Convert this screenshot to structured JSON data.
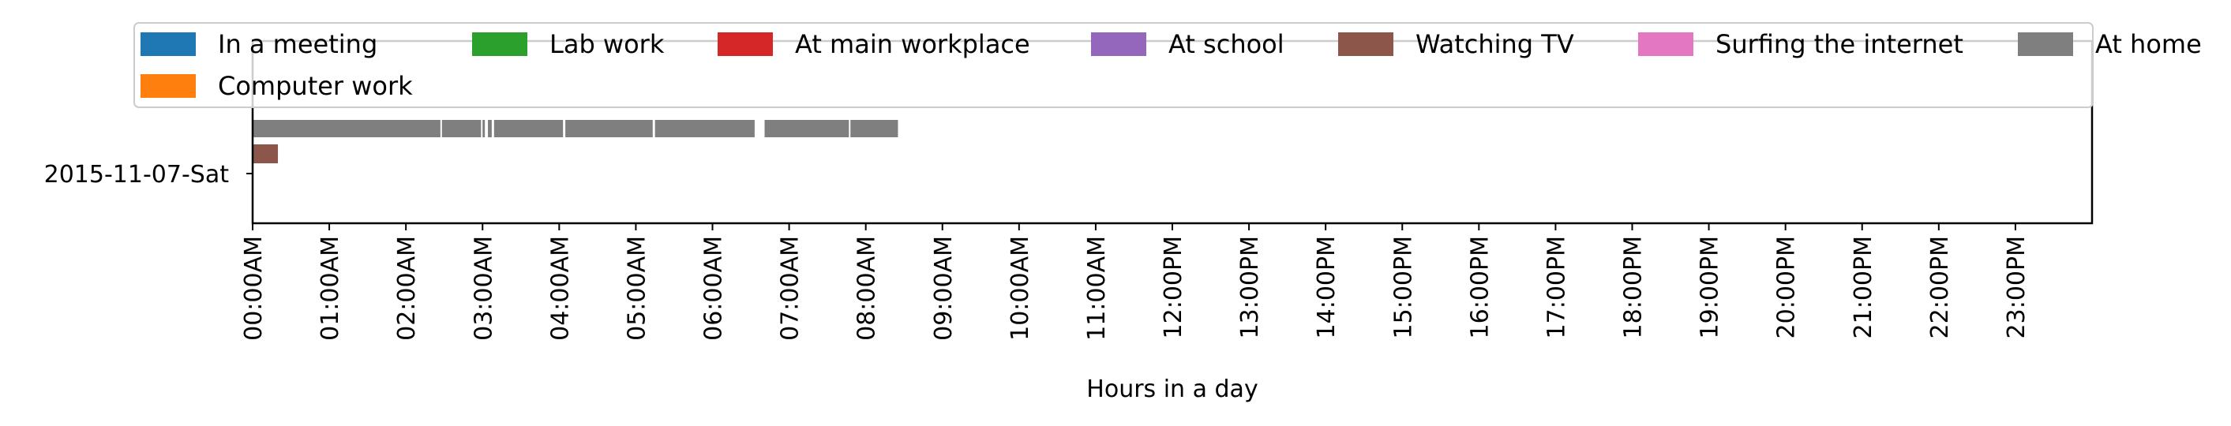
{
  "chart_data": {
    "type": "timeline",
    "title": "",
    "xlabel": "Hours in a day",
    "ylabel": "",
    "x_range_hours": [
      0,
      24
    ],
    "x_ticks": [
      "00:00AM",
      "01:00AM",
      "02:00AM",
      "03:00AM",
      "04:00AM",
      "05:00AM",
      "06:00AM",
      "07:00AM",
      "08:00AM",
      "09:00AM",
      "10:00AM",
      "11:00AM",
      "12:00PM",
      "13:00PM",
      "14:00PM",
      "15:00PM",
      "16:00PM",
      "17:00PM",
      "18:00PM",
      "19:00PM",
      "20:00PM",
      "21:00PM",
      "22:00PM",
      "23:00PM"
    ],
    "row_labels": [
      "2015-11-07-Sat"
    ],
    "legend": {
      "placement": "top",
      "entries": [
        {
          "label": "In a meeting",
          "color": "#1f77b4"
        },
        {
          "label": "Lab work",
          "color": "#2ca02c"
        },
        {
          "label": "At main workplace",
          "color": "#d62728"
        },
        {
          "label": "At school",
          "color": "#9467bd"
        },
        {
          "label": "Watching TV",
          "color": "#8c564b"
        },
        {
          "label": "Surfing the internet",
          "color": "#e377c2"
        },
        {
          "label": "At home",
          "color": "#7f7f7f"
        },
        {
          "label": "Computer work",
          "color": "#ff7f0e"
        }
      ]
    },
    "series": [
      {
        "name": "At home",
        "row": "2015-11-07-Sat",
        "color": "#7f7f7f",
        "intervals": [
          [
            0.0,
            2.45
          ],
          [
            2.47,
            2.98
          ],
          [
            3.0,
            3.03
          ],
          [
            3.07,
            3.12
          ],
          [
            3.15,
            4.05
          ],
          [
            4.08,
            5.22
          ],
          [
            5.25,
            6.55
          ],
          [
            6.68,
            7.78
          ],
          [
            7.8,
            8.42
          ]
        ]
      },
      {
        "name": "Watching TV",
        "row": "2015-11-07-Sat",
        "color": "#8c564b",
        "intervals": [
          [
            0.0,
            0.33
          ]
        ]
      }
    ]
  }
}
